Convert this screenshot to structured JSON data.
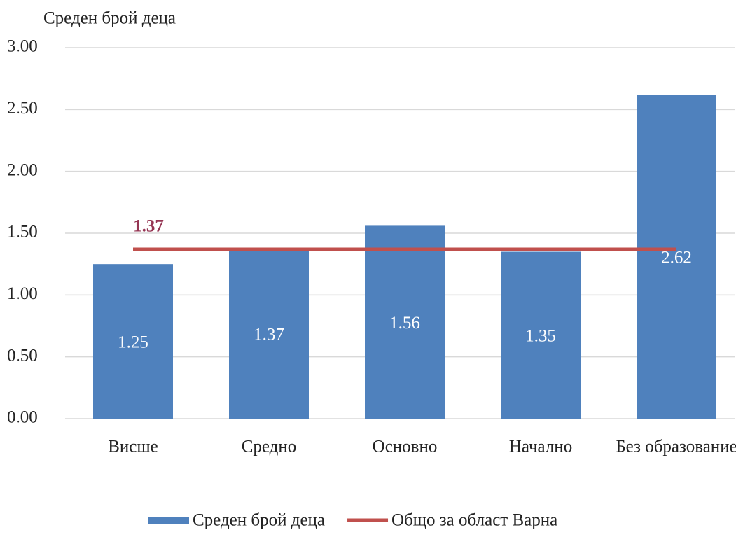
{
  "chart_data": {
    "type": "bar",
    "y_axis_label": "Среден брой деца",
    "categories": [
      "Висше",
      "Средно",
      "Основно",
      "Начално",
      "Без образование"
    ],
    "series": [
      {
        "name": "Среден брой деца",
        "type": "bar",
        "color": "#4f81bd",
        "values": [
          1.25,
          1.37,
          1.56,
          1.35,
          2.62
        ]
      },
      {
        "name": "Общо за област Варна",
        "type": "line",
        "color": "#c0504d",
        "values": [
          1.37,
          1.37,
          1.37,
          1.37,
          1.37
        ]
      }
    ],
    "ylim": [
      0,
      3
    ],
    "yticks": [
      {
        "value": 0,
        "label": "0.00"
      },
      {
        "value": 0.5,
        "label": "0.50"
      },
      {
        "value": 1,
        "label": "1.00"
      },
      {
        "value": 1.5,
        "label": "1.50"
      },
      {
        "value": 2,
        "label": "2.00"
      },
      {
        "value": 2.5,
        "label": "2.50"
      },
      {
        "value": 3,
        "label": "3.00"
      }
    ],
    "grid": true,
    "legend": "bottom"
  }
}
